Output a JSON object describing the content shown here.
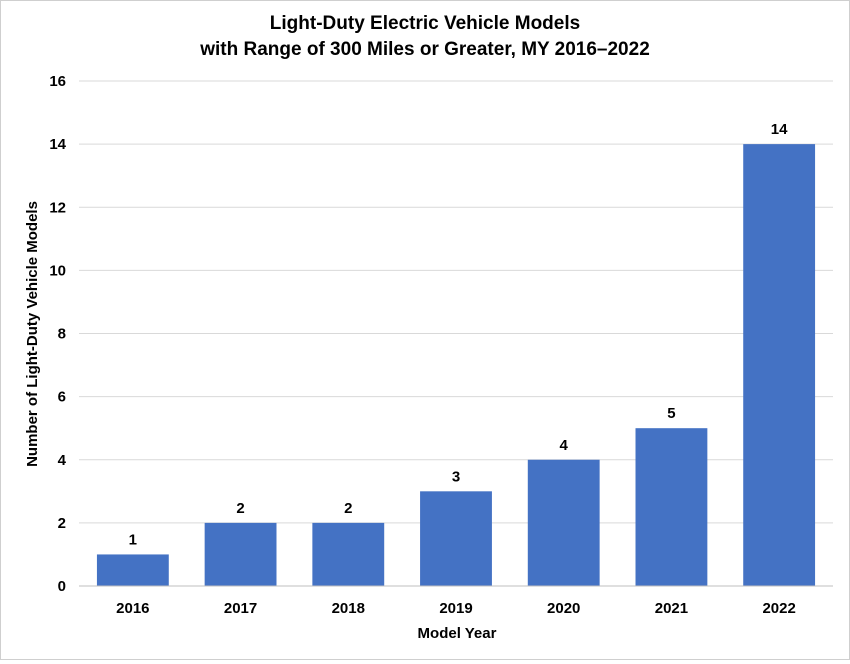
{
  "chart_data": {
    "type": "bar",
    "title_lines": [
      "Light-Duty Electric Vehicle Models",
      "with Range of 300 Miles or Greater, MY 2016–2022"
    ],
    "xlabel": "Model Year",
    "ylabel": "Number of Light-Duty Vehicle Models",
    "categories": [
      "2016",
      "2017",
      "2018",
      "2019",
      "2020",
      "2021",
      "2022"
    ],
    "values": [
      1,
      2,
      2,
      3,
      4,
      5,
      14
    ],
    "data_labels": [
      "1",
      "2",
      "2",
      "3",
      "4",
      "5",
      "14"
    ],
    "ylim": [
      0,
      16
    ],
    "yticks": [
      0,
      2,
      4,
      6,
      8,
      10,
      12,
      14,
      16
    ],
    "ytick_labels": [
      "0",
      "2",
      "4",
      "6",
      "8",
      "10",
      "12",
      "14",
      "16"
    ],
    "grid": true,
    "legend": "none",
    "bar_color": "#4472C4",
    "grid_color": "#d9d9d9"
  }
}
